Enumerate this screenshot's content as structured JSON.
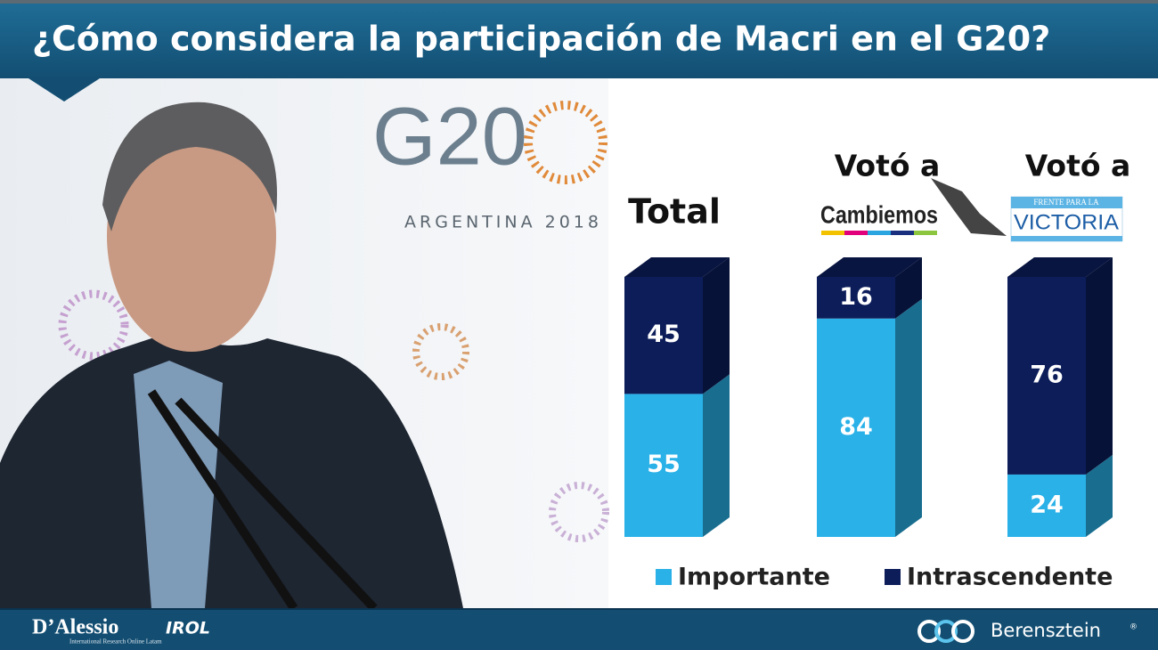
{
  "chart_data": {
    "type": "stacked-bar-3d",
    "title": "¿Cómo considera la participación de Macri en el G20?",
    "categories": [
      "Total",
      "Votó a",
      "Votó a"
    ],
    "category_logos": [
      [],
      [
        "Cambiemos"
      ],
      [
        "FRENTE PARA LA",
        "VICTORIA"
      ]
    ],
    "series": [
      {
        "name": "Importante",
        "color": "#29b1e8",
        "values": [
          55,
          84,
          24
        ]
      },
      {
        "name": "Intrascendente",
        "color": "#0c1d5a",
        "values": [
          45,
          16,
          76
        ]
      }
    ],
    "ylim": [
      0,
      100
    ]
  },
  "photo": {
    "logo": "G20",
    "caption": "ARGENTINA 2018"
  },
  "footer": {
    "left": "D’Alessio",
    "left_brand": "IROL",
    "left_tagline": "International Research Online Latam",
    "right": "Berensztein",
    "right_mark": "®"
  }
}
